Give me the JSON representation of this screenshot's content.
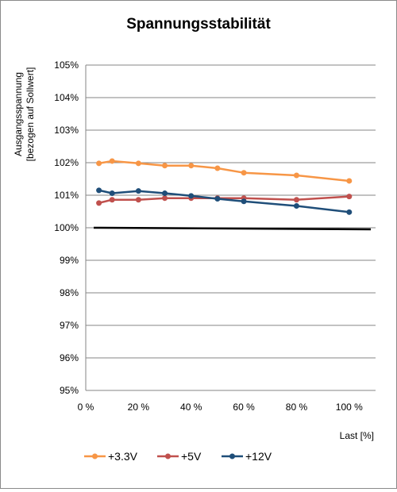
{
  "chart_data": {
    "type": "line",
    "title": "Spannungsstabilität",
    "xlabel": "Last [%]",
    "ylabel_lines": [
      "Ausgangsspannung",
      "[bezogen auf Sollwert]"
    ],
    "xlim": [
      0,
      110
    ],
    "ylim": [
      95,
      105
    ],
    "x_ticks": [
      0,
      20,
      40,
      60,
      80,
      100
    ],
    "x_tick_labels": [
      "0 %",
      "20 %",
      "40 %",
      "60 %",
      "80 %",
      "100 %"
    ],
    "y_ticks": [
      95,
      96,
      97,
      98,
      99,
      100,
      101,
      102,
      103,
      104,
      105
    ],
    "y_tick_labels": [
      "95%",
      "96%",
      "97%",
      "98%",
      "99%",
      "100%",
      "101%",
      "102%",
      "103%",
      "104%",
      "105%"
    ],
    "grid": "horizontal",
    "legend_position": "bottom",
    "reference_line": {
      "y_start": 100.0,
      "y_end": 99.95,
      "color": "#000000"
    },
    "series": [
      {
        "name": "+3.3V",
        "color": "#f79646",
        "x": [
          5,
          10,
          20,
          30,
          40,
          50,
          60,
          80,
          100
        ],
        "y": [
          101.98,
          102.05,
          101.98,
          101.91,
          101.91,
          101.83,
          101.69,
          101.61,
          101.44
        ]
      },
      {
        "name": "+5V",
        "color": "#c0504d",
        "x": [
          5,
          10,
          20,
          30,
          40,
          50,
          60,
          80,
          100
        ],
        "y": [
          100.76,
          100.86,
          100.86,
          100.91,
          100.91,
          100.91,
          100.91,
          100.86,
          100.96
        ]
      },
      {
        "name": "+12V",
        "color": "#1f4e79",
        "x": [
          5,
          10,
          20,
          30,
          40,
          50,
          60,
          80,
          100
        ],
        "y": [
          101.15,
          101.06,
          101.13,
          101.06,
          100.98,
          100.89,
          100.81,
          100.67,
          100.48
        ]
      }
    ]
  }
}
